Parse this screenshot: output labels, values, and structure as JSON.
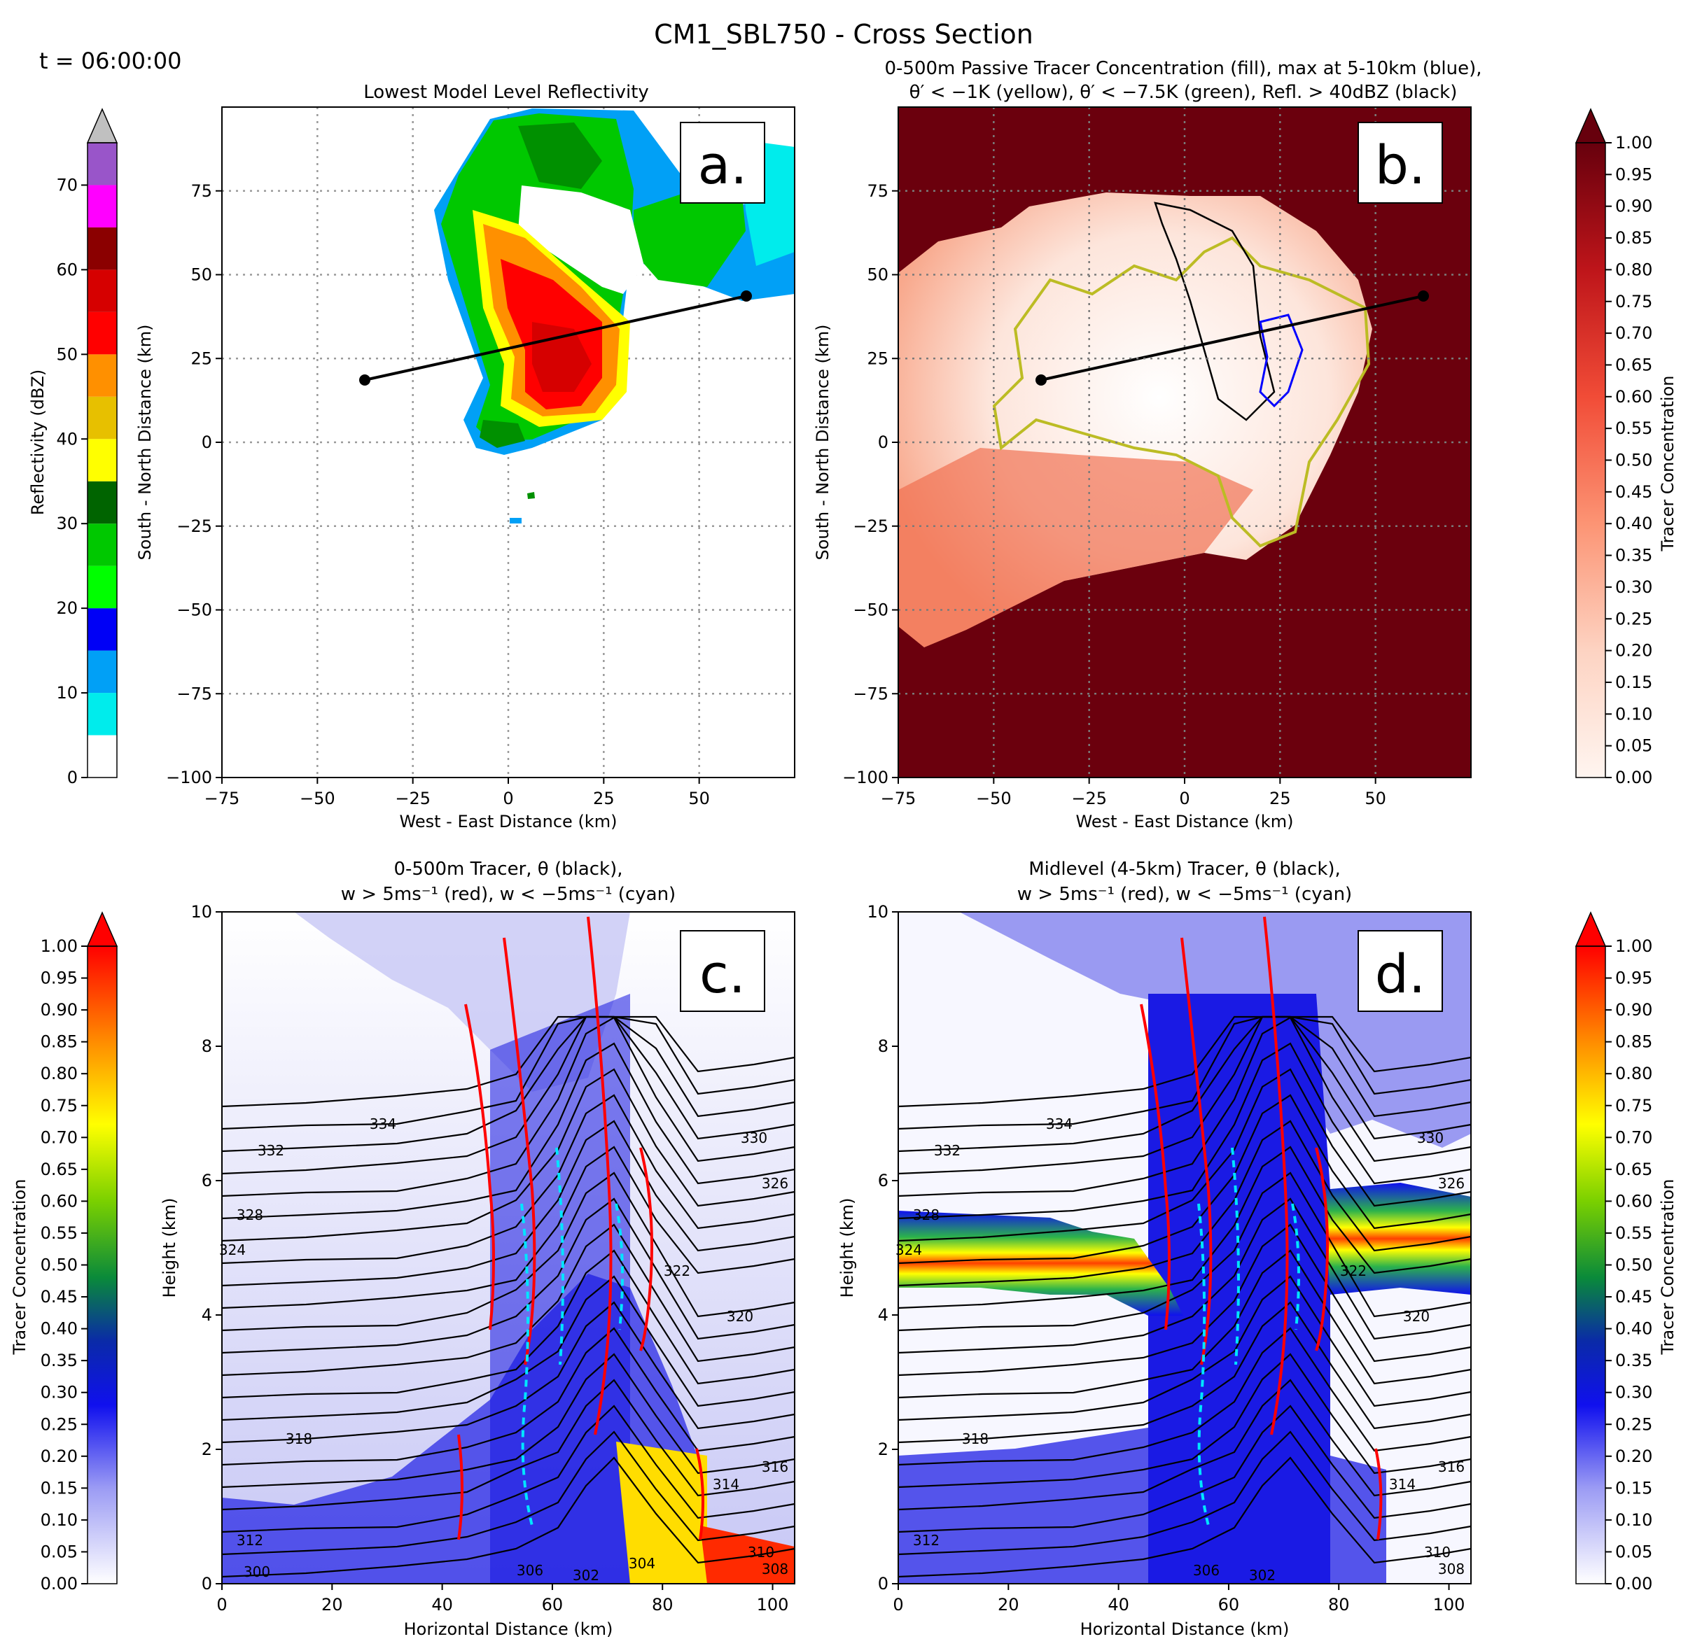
{
  "figure": {
    "title": "CM1_SBL750 - Cross Section",
    "time_label": "t = 06:00:00"
  },
  "colorbars": {
    "reflectivity": {
      "label": "Reflectivity (dBZ)",
      "ticks": [
        "0",
        "10",
        "20",
        "30",
        "40",
        "50",
        "60",
        "70"
      ],
      "colors": [
        "#ffffff",
        "#00ecec",
        "#01a0f6",
        "#0000f6",
        "#00ff00",
        "#00c800",
        "#009000",
        "#006400",
        "#ffff00",
        "#e7c000",
        "#ff9000",
        "#ff0000",
        "#d60000",
        "#c00000",
        "#8b0000",
        "#ff00ff",
        "#9955c9"
      ],
      "extend_color": "#c0c0c0"
    },
    "tracer_reds": {
      "label": "Tracer Concentration",
      "ticks": [
        "0.00",
        "0.05",
        "0.10",
        "0.15",
        "0.20",
        "0.25",
        "0.30",
        "0.35",
        "0.40",
        "0.45",
        "0.50",
        "0.55",
        "0.60",
        "0.65",
        "0.70",
        "0.75",
        "0.80",
        "0.85",
        "0.90",
        "0.95",
        "1.00"
      ],
      "color_low": "#fff5f0",
      "color_high": "#67000d"
    },
    "tracer_jet": {
      "label": "Tracer Concentration",
      "ticks": [
        "0.00",
        "0.05",
        "0.10",
        "0.15",
        "0.20",
        "0.25",
        "0.30",
        "0.35",
        "0.40",
        "0.45",
        "0.50",
        "0.55",
        "0.60",
        "0.65",
        "0.70",
        "0.75",
        "0.80",
        "0.85",
        "0.90",
        "0.95",
        "1.00"
      ]
    }
  },
  "panels": {
    "a": {
      "letter": "a.",
      "title": "Lowest Model Level Reflectivity",
      "xlabel": "West - East Distance (km)",
      "ylabel": "South - North Distance (km)",
      "xticks": [
        "−75",
        "−50",
        "−25",
        "0",
        "25",
        "50"
      ],
      "yticks": [
        "−100",
        "−75",
        "−50",
        "−25",
        "0",
        "25",
        "50",
        "75"
      ]
    },
    "b": {
      "letter": "b.",
      "title_line1": "0-500m Passive Tracer Concentration (fill), max at 5-10km (blue),",
      "title_line2": "θ′ < −1K (yellow), θ′ < −7.5K (green), Refl. > 40dBZ (black)",
      "xlabel": "West - East Distance (km)",
      "ylabel": "South - North Distance (km)",
      "xticks": [
        "−75",
        "−50",
        "−25",
        "0",
        "25",
        "50"
      ],
      "yticks": [
        "−100",
        "−75",
        "−50",
        "−25",
        "0",
        "25",
        "50",
        "75"
      ]
    },
    "c": {
      "letter": "c.",
      "title_line1": "0-500m Tracer, θ (black),",
      "title_line2": "w > 5ms⁻¹ (red), w < −5ms⁻¹ (cyan)",
      "xlabel": "Horizontal Distance (km)",
      "ylabel": "Height (km)",
      "xticks": [
        "0",
        "20",
        "40",
        "60",
        "80",
        "100"
      ],
      "yticks": [
        "0",
        "2",
        "4",
        "6",
        "8",
        "10"
      ],
      "contour_labels": [
        "334",
        "332",
        "328",
        "324",
        "330",
        "326",
        "322",
        "320",
        "318",
        "316",
        "314",
        "310",
        "308",
        "306",
        "304",
        "302",
        "300",
        "312"
      ]
    },
    "d": {
      "letter": "d.",
      "title_line1": "Midlevel (4-5km) Tracer, θ (black),",
      "title_line2": "w > 5ms⁻¹ (red), w < −5ms⁻¹ (cyan)",
      "xlabel": "Horizontal Distance (km)",
      "ylabel": "Height (km)",
      "xticks": [
        "0",
        "20",
        "40",
        "60",
        "80",
        "100"
      ],
      "yticks": [
        "0",
        "2",
        "4",
        "6",
        "8",
        "10"
      ],
      "contour_labels": [
        "334",
        "332",
        "328",
        "324",
        "330",
        "326",
        "322",
        "320",
        "318",
        "316",
        "314",
        "310",
        "308",
        "306",
        "302",
        "312"
      ]
    }
  },
  "chart_data": [
    {
      "type": "heatmap",
      "panel": "a",
      "title": "Lowest Model Level Reflectivity",
      "xlabel": "West - East Distance (km)",
      "ylabel": "South - North Distance (km)",
      "xlim": [
        -75,
        75
      ],
      "ylim": [
        -100,
        100
      ],
      "colorbar": "Reflectivity (dBZ)",
      "colorbar_range": [
        0,
        75
      ],
      "cross_section_line": {
        "start": [
          -37.5,
          18.5
        ],
        "end": [
          62.5,
          44
        ]
      }
    },
    {
      "type": "heatmap",
      "panel": "b",
      "title": "0-500m Passive Tracer Concentration (fill), max at 5-10km (blue), θ′ < −1K (yellow), θ′ < −7.5K (green), Refl. > 40dBZ (black)",
      "xlabel": "West - East Distance (km)",
      "ylabel": "South - North Distance (km)",
      "xlim": [
        -75,
        75
      ],
      "ylim": [
        -100,
        100
      ],
      "colorbar": "Tracer Concentration",
      "colorbar_range": [
        0,
        1
      ],
      "cross_section_line": {
        "start": [
          -37.5,
          18.5
        ],
        "end": [
          62.5,
          44
        ]
      }
    },
    {
      "type": "heatmap",
      "panel": "c",
      "title": "0-500m Tracer, θ (black), w > 5ms⁻¹ (red), w < −5ms⁻¹ (cyan)",
      "xlabel": "Horizontal Distance (km)",
      "ylabel": "Height (km)",
      "xlim": [
        0,
        104
      ],
      "ylim": [
        0,
        10
      ],
      "colorbar": "Tracer Concentration",
      "colorbar_range": [
        0,
        1
      ]
    },
    {
      "type": "heatmap",
      "panel": "d",
      "title": "Midlevel (4-5km) Tracer, θ (black), w > 5ms⁻¹ (red), w < −5ms⁻¹ (cyan)",
      "xlabel": "Horizontal Distance (km)",
      "ylabel": "Height (km)",
      "xlim": [
        0,
        104
      ],
      "ylim": [
        0,
        10
      ],
      "colorbar": "Tracer Concentration",
      "colorbar_range": [
        0,
        1
      ]
    }
  ]
}
